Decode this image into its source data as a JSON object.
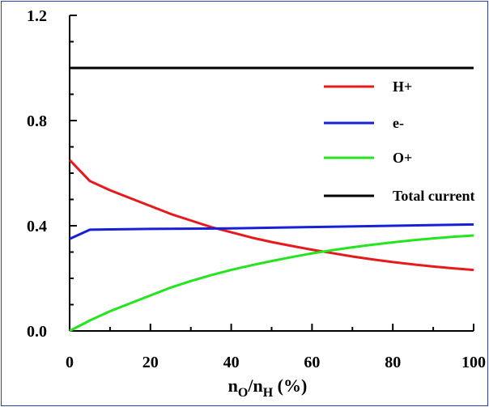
{
  "chart_data": {
    "type": "line",
    "title": "",
    "xlabel": {
      "main": "n",
      "sub1": "O",
      "slash": "/n",
      "sub2": "H",
      "unit": " (%)"
    },
    "ylabel": "",
    "xlim": [
      0,
      100
    ],
    "ylim": [
      0.0,
      1.2
    ],
    "x_ticks": [
      "0",
      "20",
      "40",
      "60",
      "80",
      "100"
    ],
    "y_ticks": [
      "0.0",
      "0.4",
      "0.8",
      "1.2"
    ],
    "legend_position": "top-right",
    "grid": false,
    "series": [
      {
        "name": "H+",
        "color": "#e8191a",
        "x": [
          0,
          5,
          10,
          15,
          20,
          25,
          30,
          35,
          40,
          45,
          50,
          55,
          60,
          65,
          70,
          75,
          80,
          85,
          90,
          95,
          100
        ],
        "y": [
          0.65,
          0.57,
          0.535,
          0.505,
          0.475,
          0.445,
          0.42,
          0.395,
          0.375,
          0.355,
          0.338,
          0.323,
          0.309,
          0.296,
          0.283,
          0.272,
          0.262,
          0.253,
          0.245,
          0.238,
          0.232
        ]
      },
      {
        "name": "e-",
        "color": "#1520d8",
        "x": [
          0,
          5,
          10,
          20,
          40,
          60,
          80,
          100
        ],
        "y": [
          0.35,
          0.385,
          0.386,
          0.388,
          0.39,
          0.395,
          0.4,
          0.405
        ]
      },
      {
        "name": "O+",
        "color": "#22e51e",
        "x": [
          0,
          5,
          10,
          15,
          20,
          25,
          30,
          35,
          40,
          45,
          50,
          55,
          60,
          65,
          70,
          75,
          80,
          85,
          90,
          95,
          100
        ],
        "y": [
          0.0,
          0.04,
          0.075,
          0.105,
          0.135,
          0.165,
          0.19,
          0.212,
          0.232,
          0.25,
          0.266,
          0.281,
          0.295,
          0.307,
          0.318,
          0.328,
          0.337,
          0.345,
          0.352,
          0.358,
          0.363
        ]
      },
      {
        "name": "Total current",
        "color": "#000000",
        "x": [
          0,
          100
        ],
        "y": [
          1.0,
          1.0
        ]
      }
    ]
  }
}
